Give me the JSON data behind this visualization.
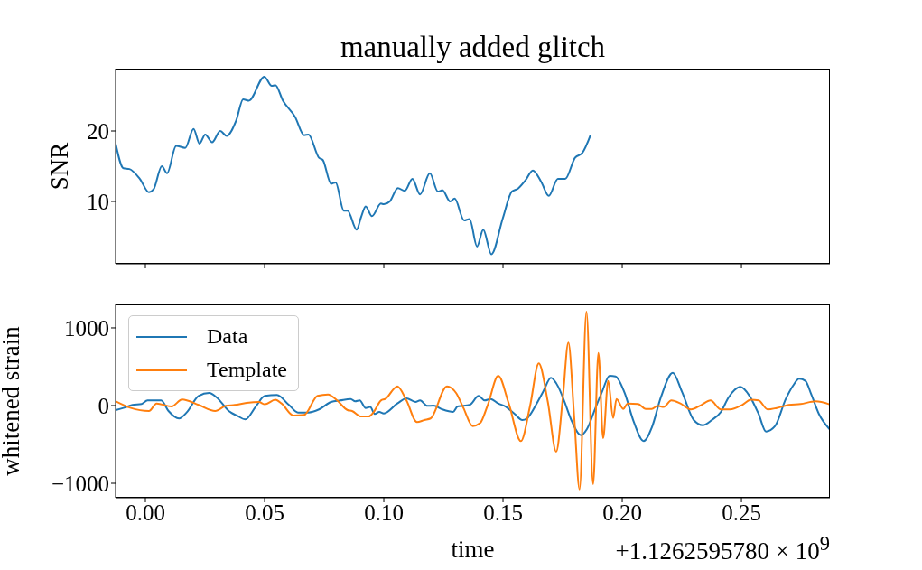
{
  "chart_data": [
    {
      "type": "line",
      "title": "manually added glitch",
      "ylabel": "SNR",
      "tick_labels": "y",
      "xlim": [
        -0.0125,
        0.2871
      ],
      "ylim": [
        1.15,
        28.85
      ],
      "xticks": [
        {
          "value": 0,
          "label": null
        },
        {
          "value": 0.05,
          "label": null
        },
        {
          "value": 0.1,
          "label": null
        },
        {
          "value": 0.15,
          "label": null
        },
        {
          "value": 0.2,
          "label": null
        },
        {
          "value": 0.25,
          "label": null
        }
      ],
      "yticks": [
        10,
        20
      ],
      "series": [
        {
          "color": "#1f77b4",
          "x": [
            -0.0124,
            -0.0092,
            -0.0067,
            -0.0023,
            0.0015,
            0.0034,
            0.0069,
            0.0091,
            0.0129,
            0.0167,
            0.0202,
            0.0227,
            0.0251,
            0.028,
            0.0314,
            0.0341,
            0.0381,
            0.041,
            0.0434,
            0.0499,
            0.053,
            0.0545,
            0.0577,
            0.0628,
            0.0666,
            0.0684,
            0.0728,
            0.0744,
            0.0779,
            0.0798,
            0.0832,
            0.0848,
            0.0886,
            0.0905,
            0.0924,
            0.095,
            0.0988,
            0.1,
            0.1025,
            0.1059,
            0.1088,
            0.112,
            0.1152,
            0.1193,
            0.1227,
            0.1246,
            0.1278,
            0.1297,
            0.1337,
            0.136,
            0.1391,
            0.1417,
            0.1451,
            0.1499,
            0.1537,
            0.1562,
            0.1594,
            0.1625,
            0.166,
            0.1692,
            0.173,
            0.1761,
            0.1802,
            0.1833,
            0.1867
          ],
          "values": [
            18.1,
            14.7,
            14.6,
            13.2,
            11.3,
            11.7,
            15.0,
            14.0,
            17.9,
            17.6,
            20.3,
            18.2,
            19.5,
            18.4,
            20.0,
            19.3,
            21.5,
            24.5,
            24.3,
            27.7,
            26.4,
            26.5,
            24.3,
            22.0,
            19.4,
            19.5,
            16.2,
            15.9,
            12.5,
            12.7,
            8.7,
            8.7,
            6.0,
            7.8,
            9.3,
            7.9,
            9.7,
            9.6,
            10.0,
            11.9,
            11.5,
            13.2,
            11.0,
            14.0,
            11.4,
            11.6,
            10.0,
            10.4,
            7.3,
            7.5,
            3.6,
            6.0,
            2.5,
            7.6,
            11.4,
            11.8,
            13.0,
            14.4,
            12.8,
            10.8,
            13.2,
            13.2,
            16.2,
            16.9,
            19.4
          ]
        }
      ]
    },
    {
      "type": "line",
      "xlabel": "time",
      "ylabel": "whitened strain",
      "legend": "top left",
      "annotations": [
        "+1.1262595780 × 10$^{9}$"
      ],
      "xlim": [
        -0.0125,
        0.2871
      ],
      "ylim": [
        -1186,
        1302
      ],
      "xticks": [
        {
          "value": 0,
          "label": "0.00"
        },
        {
          "value": 0.05,
          "label": "0.05"
        },
        {
          "value": 0.1,
          "label": "0.10"
        },
        {
          "value": 0.15,
          "label": "0.15"
        },
        {
          "value": 0.2,
          "label": "0.20"
        },
        {
          "value": 0.25,
          "label": "0.25"
        }
      ],
      "yticks": [
        {
          "value": -1000,
          "label": "−1000"
        },
        0,
        1000
      ],
      "series": [
        {
          "name": "Data",
          "color": "#1f77b4",
          "x": [
            -0.0124,
            -0.0092,
            -0.0054,
            -0.0016,
            0.0009,
            0.0066,
            0.0097,
            0.0141,
            0.0173,
            0.0223,
            0.0268,
            0.0299,
            0.035,
            0.0388,
            0.0419,
            0.0463,
            0.0501,
            0.0552,
            0.0602,
            0.064,
            0.0684,
            0.0728,
            0.0779,
            0.0817,
            0.0861,
            0.088,
            0.0899,
            0.0924,
            0.0943,
            0.0962,
            0.0981,
            0.1,
            0.1057,
            0.1095,
            0.1133,
            0.1152,
            0.1183,
            0.1208,
            0.1246,
            0.1291,
            0.1309,
            0.136,
            0.1398,
            0.1423,
            0.1448,
            0.148,
            0.1511,
            0.1549,
            0.1581,
            0.16,
            0.1638,
            0.1669,
            0.1701,
            0.1732,
            0.1758,
            0.1789,
            0.1827,
            0.1852,
            0.189,
            0.1916,
            0.1947,
            0.1972,
            0.201,
            0.2048,
            0.209,
            0.2124,
            0.2162,
            0.2212,
            0.225,
            0.23,
            0.2338,
            0.2376,
            0.2414,
            0.2446,
            0.2471,
            0.2496,
            0.2534,
            0.2572,
            0.2603,
            0.2641,
            0.2686,
            0.2717,
            0.2742,
            0.2768,
            0.2793,
            0.2825,
            0.2869
          ],
          "values": [
            -58,
            -31,
            8,
            20,
            66,
            66,
            -70,
            -166,
            -89,
            124,
            163,
            105,
            -70,
            -136,
            -178,
            -12,
            124,
            136,
            8,
            -89,
            -89,
            -50,
            47,
            66,
            85,
            54,
            66,
            -31,
            -19,
            -108,
            -81,
            -101,
            27,
            93,
            47,
            66,
            -4,
            0,
            -50,
            -81,
            -12,
            8,
            124,
            66,
            85,
            27,
            -12,
            -108,
            -186,
            -166,
            8,
            182,
            357,
            240,
            47,
            -205,
            -380,
            -302,
            -12,
            182,
            384,
            376,
            163,
            -205,
            -457,
            -283,
            105,
            422,
            182,
            -186,
            -252,
            -186,
            -81,
            105,
            201,
            240,
            124,
            -108,
            -334,
            -264,
            85,
            259,
            345,
            318,
            143,
            -108,
            -302
          ]
        },
        {
          "name": "Template",
          "color": "#ff7f0e",
          "x": [
            -0.0124,
            -0.0061,
            0.0015,
            0.0047,
            0.011,
            0.0154,
            0.0223,
            0.0293,
            0.0337,
            0.0375,
            0.0425,
            0.0476,
            0.0501,
            0.0545,
            0.0571,
            0.0621,
            0.0666,
            0.0722,
            0.0766,
            0.0804,
            0.0848,
            0.0867,
            0.0905,
            0.0937,
            0.0956,
            0.0988,
            0.1006,
            0.1057,
            0.1095,
            0.1139,
            0.117,
            0.1196,
            0.1265,
            0.1303,
            0.1334,
            0.1373,
            0.1404,
            0.1436,
            0.148,
            0.1524,
            0.1575,
            0.1613,
            0.165,
            0.1688,
            0.1723,
            0.1751,
            0.1774,
            0.1799,
            0.1821,
            0.185,
            0.1878,
            0.19,
            0.192,
            0.1941,
            0.1962,
            0.1976,
            0.2004,
            0.2023,
            0.2067,
            0.2098,
            0.2124,
            0.2149,
            0.2174,
            0.2206,
            0.2244,
            0.2288,
            0.2332,
            0.237,
            0.2414,
            0.2452,
            0.2503,
            0.254,
            0.2572,
            0.261,
            0.2648,
            0.2698,
            0.2748,
            0.2811,
            0.2869
          ],
          "values": [
            54,
            -31,
            -70,
            27,
            -12,
            78,
            8,
            -70,
            -4,
            8,
            35,
            47,
            16,
            74,
            27,
            -128,
            -120,
            124,
            143,
            66,
            -58,
            -70,
            -140,
            -140,
            -89,
            66,
            85,
            248,
            66,
            -213,
            -186,
            -166,
            248,
            163,
            -31,
            -264,
            -225,
            8,
            384,
            27,
            -457,
            -12,
            543,
            47,
            -593,
            105,
            811,
            -166,
            -1078,
            1210,
            -1012,
            678,
            -419,
            318,
            -159,
            85,
            -43,
            27,
            20,
            -43,
            -43,
            -4,
            -19,
            66,
            27,
            -50,
            8,
            66,
            -50,
            -50,
            8,
            74,
            66,
            -50,
            -31,
            8,
            20,
            54,
            16
          ]
        }
      ]
    }
  ]
}
